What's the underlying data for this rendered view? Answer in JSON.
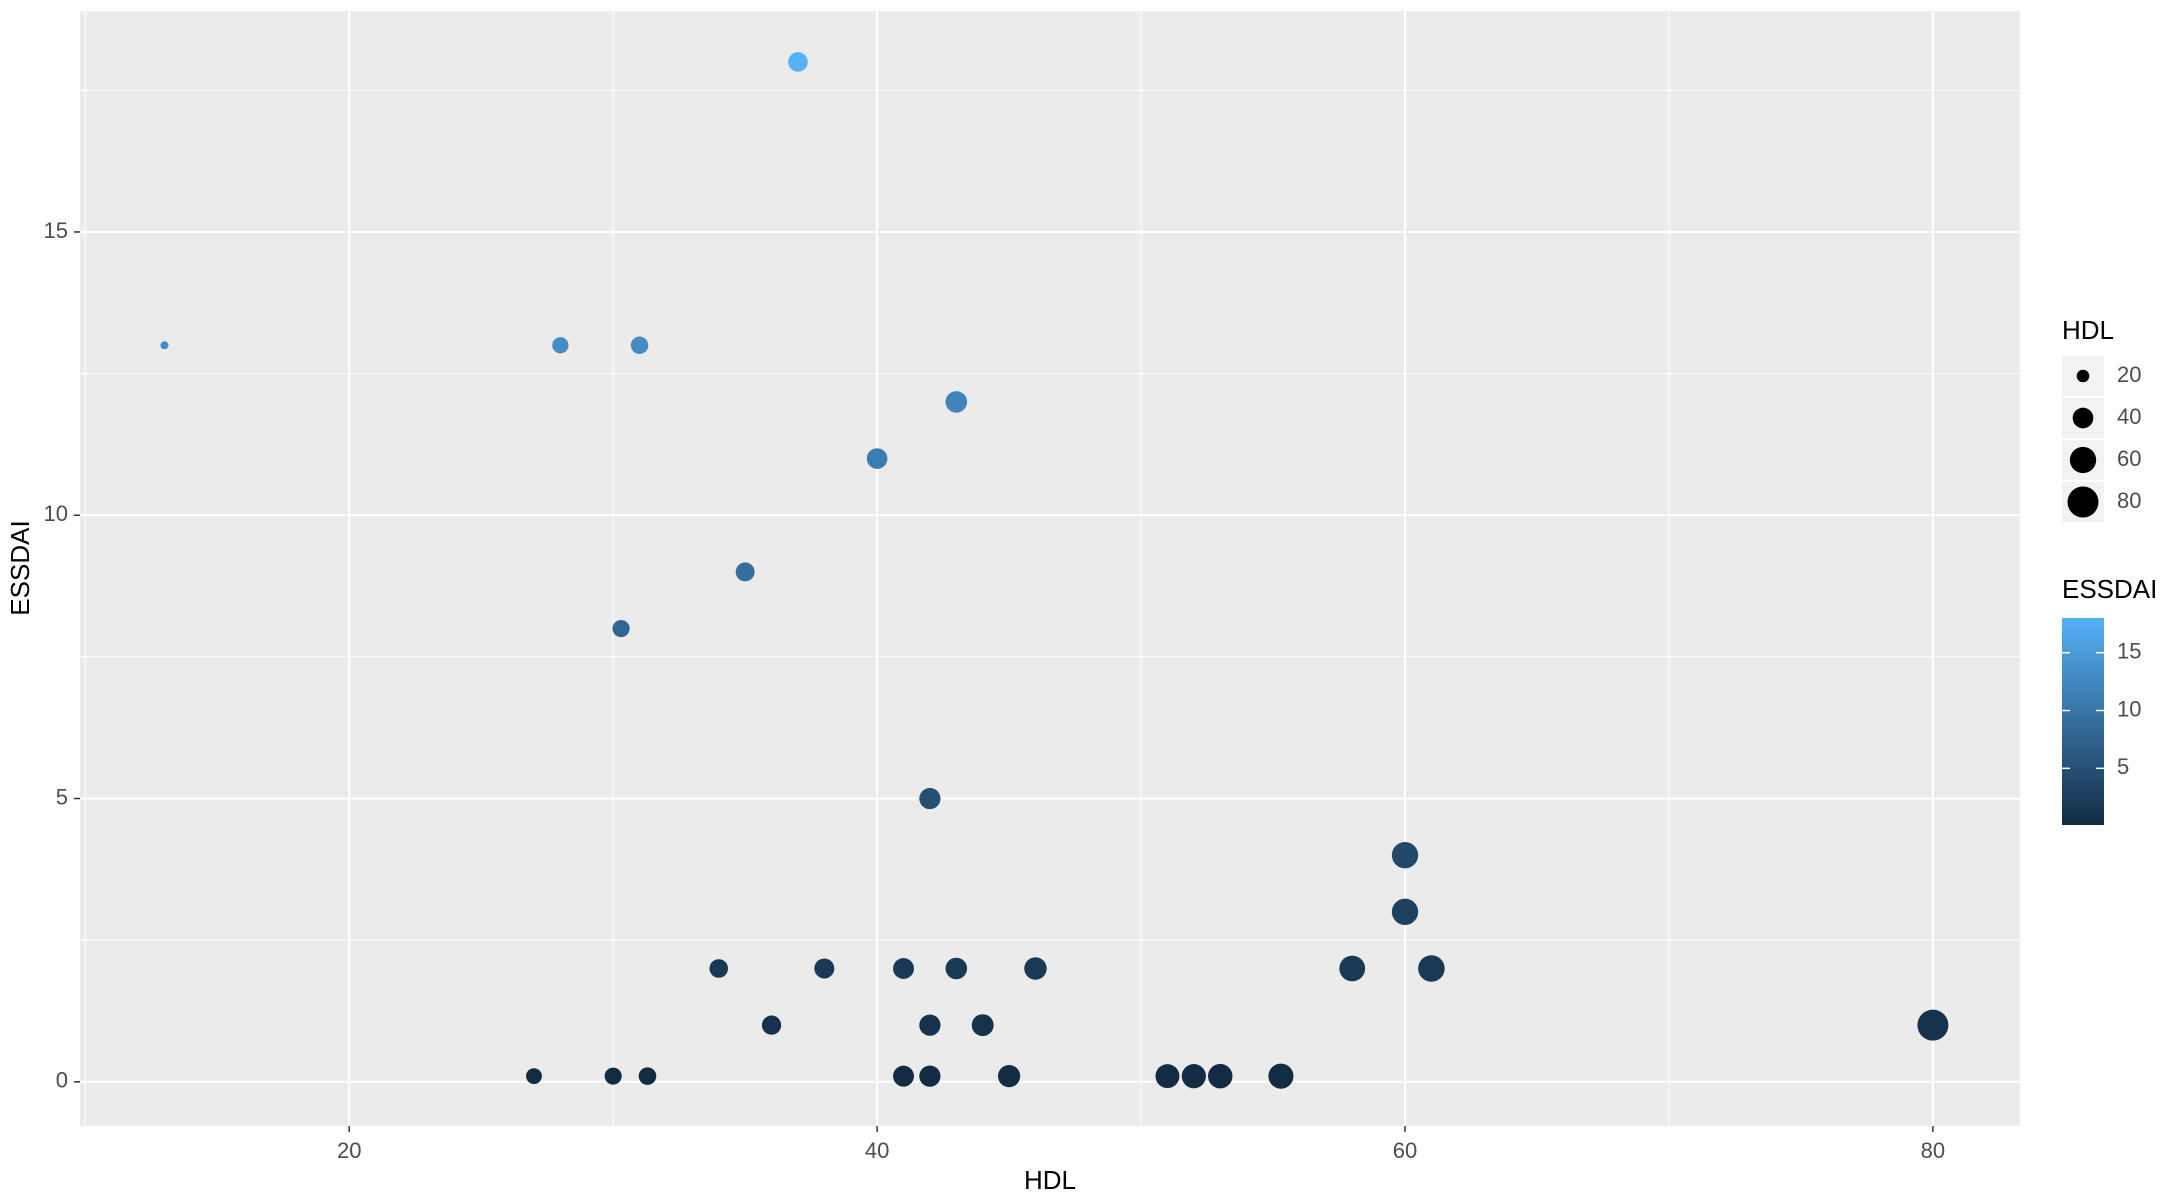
{
  "chart_data": {
    "type": "scatter",
    "x_label": "HDL",
    "y_label": "ESSDAI",
    "x": [
      13,
      28,
      31,
      37,
      43,
      40,
      35,
      30.3,
      42,
      60,
      60,
      34,
      38,
      41,
      43,
      46,
      58,
      61,
      36,
      42,
      44,
      80,
      27,
      30,
      31.3,
      41,
      42,
      45,
      51,
      52,
      53,
      55.3
    ],
    "y": [
      13,
      13,
      13,
      18,
      12,
      11,
      9,
      8,
      5,
      4,
      3,
      2,
      2,
      2,
      2,
      2,
      2,
      2,
      1,
      1,
      1,
      1,
      0.1,
      0.1,
      0.1,
      0.1,
      0.1,
      0.1,
      0.1,
      0.1,
      0.1,
      0.1
    ],
    "sizes": [
      13,
      28,
      31,
      37,
      43,
      40,
      35,
      30.3,
      42,
      60,
      60,
      34,
      38,
      41,
      43,
      46,
      58,
      61,
      36,
      42,
      44,
      80,
      27,
      30,
      31.3,
      41,
      42,
      45,
      51,
      52,
      53,
      55.3
    ],
    "xlim": [
      9.8,
      83.3
    ],
    "ylim": [
      -0.78,
      18.9
    ],
    "xticks": [
      20,
      40,
      60,
      80
    ],
    "yticks": [
      0,
      5,
      10,
      15
    ],
    "grid": true,
    "color_low": "#132B43",
    "color_high": "#56B1F7",
    "size_legend": {
      "title": "HDL",
      "values": [
        20,
        40,
        60,
        80
      ]
    },
    "color_legend": {
      "title": "ESSDAI",
      "ticks": [
        5,
        10,
        15
      ]
    }
  }
}
